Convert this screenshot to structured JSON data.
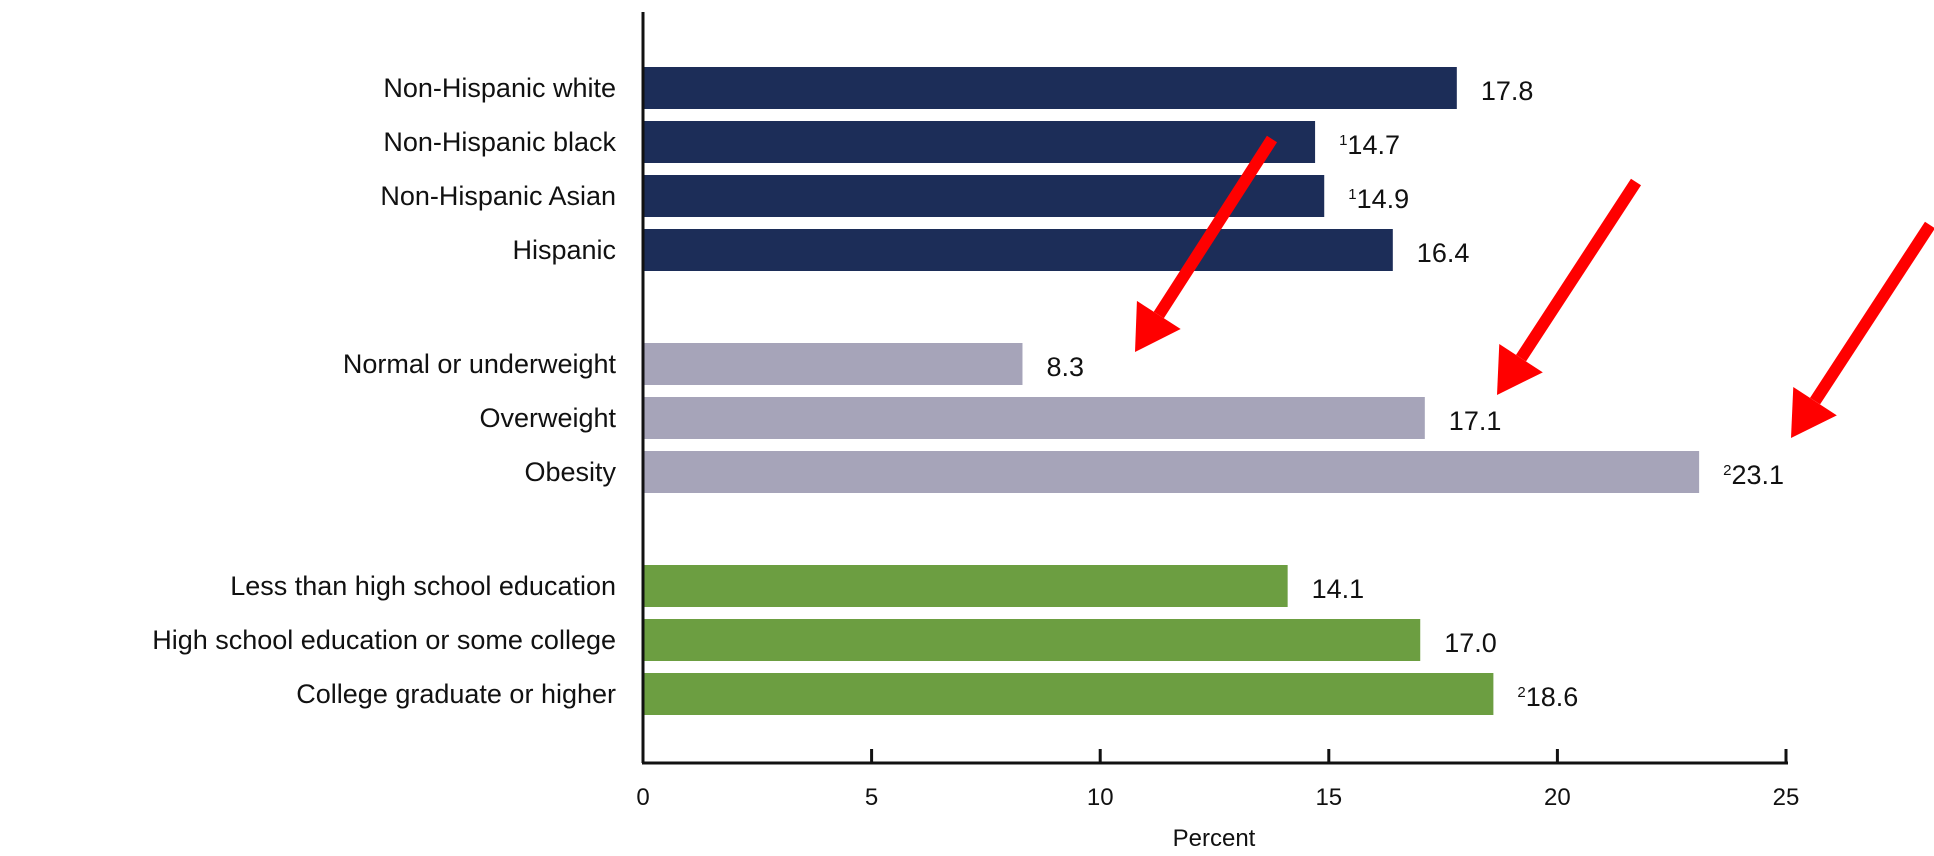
{
  "chart_data": {
    "type": "bar",
    "orientation": "horizontal",
    "xlabel": "Percent",
    "xlim": [
      0,
      25
    ],
    "xticks": [
      0,
      5,
      10,
      15,
      20,
      25
    ],
    "grid": false,
    "groups": [
      {
        "color": "#1c2d58",
        "bars": [
          {
            "label": "Non-Hispanic white",
            "value": 17.8,
            "footnote": ""
          },
          {
            "label": "Non-Hispanic black",
            "value": 14.7,
            "footnote": "1"
          },
          {
            "label": "Non-Hispanic Asian",
            "value": 14.9,
            "footnote": "1"
          },
          {
            "label": "Hispanic",
            "value": 16.4,
            "footnote": ""
          }
        ]
      },
      {
        "color": "#a6a4b9",
        "bars": [
          {
            "label": "Normal or underweight",
            "value": 8.3,
            "footnote": ""
          },
          {
            "label": "Overweight",
            "value": 17.1,
            "footnote": ""
          },
          {
            "label": "Obesity",
            "value": 23.1,
            "footnote": "2"
          }
        ]
      },
      {
        "color": "#6c9e41",
        "bars": [
          {
            "label": "Less than high school education",
            "value": 14.1,
            "footnote": ""
          },
          {
            "label": "High school education or some college",
            "value": 17.0,
            "footnote": ""
          },
          {
            "label": "College graduate or higher",
            "value": 18.6,
            "footnote": "2"
          }
        ]
      }
    ],
    "annotations": [
      {
        "type": "arrow",
        "color": "#ff0000",
        "points_to": "Normal or underweight"
      },
      {
        "type": "arrow",
        "color": "#ff0000",
        "points_to": "Overweight"
      },
      {
        "type": "arrow",
        "color": "#ff0000",
        "points_to": "Obesity"
      }
    ]
  }
}
